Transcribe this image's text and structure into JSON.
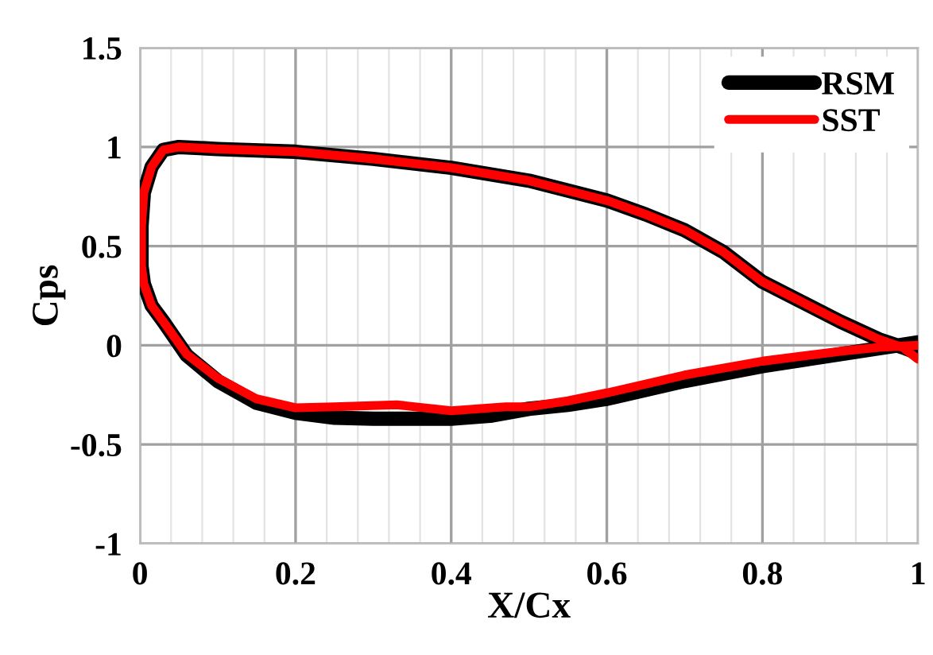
{
  "chart_data": {
    "type": "line",
    "xlabel": "X/Cx",
    "ylabel": "Cps",
    "xlim": [
      0,
      1
    ],
    "ylim": [
      -1,
      1.5
    ],
    "xticks": [
      0,
      {
        "value": 0.04,
        "label": null
      },
      {
        "value": 0.08,
        "label": null
      },
      {
        "value": 0.12,
        "label": null
      },
      {
        "value": 0.16,
        "label": null
      },
      0.2,
      {
        "value": 0.24,
        "label": null
      },
      {
        "value": 0.28,
        "label": null
      },
      {
        "value": 0.32,
        "label": null
      },
      {
        "value": 0.36,
        "label": null
      },
      0.4,
      {
        "value": 0.44,
        "label": null
      },
      {
        "value": 0.48,
        "label": null
      },
      {
        "value": 0.52,
        "label": null
      },
      {
        "value": 0.56,
        "label": null
      },
      0.6,
      {
        "value": 0.64,
        "label": null
      },
      {
        "value": 0.68,
        "label": null
      },
      {
        "value": 0.72,
        "label": null
      },
      {
        "value": 0.76,
        "label": null
      },
      0.8,
      {
        "value": 0.84,
        "label": null
      },
      {
        "value": 0.88,
        "label": null
      },
      {
        "value": 0.92,
        "label": null
      },
      {
        "value": 0.96,
        "label": null
      },
      1
    ],
    "yticks": [
      -1,
      -0.5,
      0,
      0.5,
      1,
      1.5
    ],
    "grid": true,
    "legend": "top right",
    "marker": "none",
    "line_style": "solid",
    "series": [
      {
        "name": "RSM",
        "color": "#000000",
        "x": [
          1.0,
          0.98,
          0.95,
          0.9,
          0.85,
          0.8,
          0.75,
          0.7,
          0.65,
          0.6,
          0.5,
          0.4,
          0.3,
          0.2,
          0.1,
          0.05,
          0.03,
          0.015,
          0.005,
          0.002,
          0.002,
          0.005,
          0.015,
          0.03,
          0.06,
          0.1,
          0.15,
          0.2,
          0.25,
          0.3,
          0.4,
          0.45,
          0.5,
          0.55,
          0.6,
          0.7,
          0.8,
          0.9,
          0.95,
          1.0
        ],
        "values": [
          -0.04,
          -0.01,
          0.03,
          0.12,
          0.22,
          0.32,
          0.47,
          0.58,
          0.66,
          0.73,
          0.83,
          0.895,
          0.94,
          0.976,
          0.99,
          1.0,
          0.985,
          0.9,
          0.77,
          0.6,
          0.4,
          0.31,
          0.2,
          0.12,
          -0.05,
          -0.18,
          -0.29,
          -0.34,
          -0.365,
          -0.37,
          -0.37,
          -0.355,
          -0.32,
          -0.3,
          -0.27,
          -0.18,
          -0.105,
          -0.045,
          -0.015,
          0.015
        ]
      },
      {
        "name": "SST",
        "color": "#ff0000",
        "x": [
          1.0,
          0.98,
          0.95,
          0.9,
          0.85,
          0.8,
          0.75,
          0.7,
          0.65,
          0.6,
          0.5,
          0.4,
          0.3,
          0.2,
          0.1,
          0.05,
          0.03,
          0.015,
          0.005,
          0.002,
          0.002,
          0.005,
          0.015,
          0.03,
          0.06,
          0.1,
          0.15,
          0.2,
          0.25,
          0.33,
          0.4,
          0.47,
          0.5,
          0.55,
          0.6,
          0.7,
          0.8,
          0.9,
          0.95,
          1.0
        ],
        "values": [
          -0.07,
          -0.01,
          0.03,
          0.12,
          0.22,
          0.32,
          0.47,
          0.58,
          0.66,
          0.73,
          0.83,
          0.895,
          0.94,
          0.976,
          0.99,
          1.0,
          0.985,
          0.9,
          0.77,
          0.6,
          0.4,
          0.31,
          0.2,
          0.12,
          -0.045,
          -0.165,
          -0.27,
          -0.315,
          -0.31,
          -0.3,
          -0.33,
          -0.31,
          -0.31,
          -0.28,
          -0.24,
          -0.15,
          -0.08,
          -0.03,
          -0.01,
          0.0
        ]
      }
    ]
  }
}
